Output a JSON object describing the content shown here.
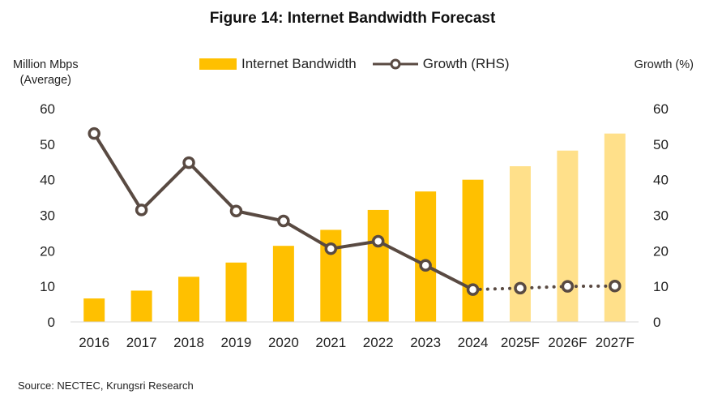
{
  "title": "Figure 14: Internet Bandwidth Forecast",
  "left_axis_label_line1": "Million Mbps",
  "left_axis_label_line2": "(Average)",
  "right_axis_label": "Growth (%)",
  "source": "Source: NECTEC, Krungsri Research",
  "colors": {
    "bar_actual": "#FFC000",
    "bar_forecast": "#FFE08A",
    "line": "#594A42",
    "marker_fill": "#ffffff"
  },
  "chart_data": {
    "type": "bar",
    "title": "Figure 14: Internet Bandwidth Forecast",
    "categories": [
      "2016",
      "2017",
      "2018",
      "2019",
      "2020",
      "2021",
      "2022",
      "2023",
      "2024",
      "2025F",
      "2026F",
      "2027F"
    ],
    "series": [
      {
        "name": "Internet Bandwidth",
        "type": "bar",
        "axis": "left",
        "values": [
          6.6,
          8.8,
          12.7,
          16.7,
          21.4,
          25.9,
          31.5,
          36.7,
          40.0,
          43.8,
          48.2,
          53.0
        ],
        "forecast_from_index": 9
      },
      {
        "name": "Growth (RHS)",
        "type": "line",
        "axis": "right",
        "values": [
          53.0,
          31.5,
          44.8,
          31.2,
          28.4,
          20.6,
          22.7,
          15.9,
          9.1,
          9.5,
          10.0,
          10.1
        ],
        "dotted_from_index": 8
      }
    ],
    "ylabel": "Million Mbps (Average)",
    "y2label": "Growth (%)",
    "ylim": [
      0,
      60
    ],
    "y2lim": [
      0,
      60
    ],
    "yticks": [
      0,
      10,
      20,
      30,
      40,
      50,
      60
    ],
    "y2ticks": [
      0,
      10,
      20,
      30,
      40,
      50,
      60
    ],
    "legend": "top-center",
    "grid": false
  }
}
